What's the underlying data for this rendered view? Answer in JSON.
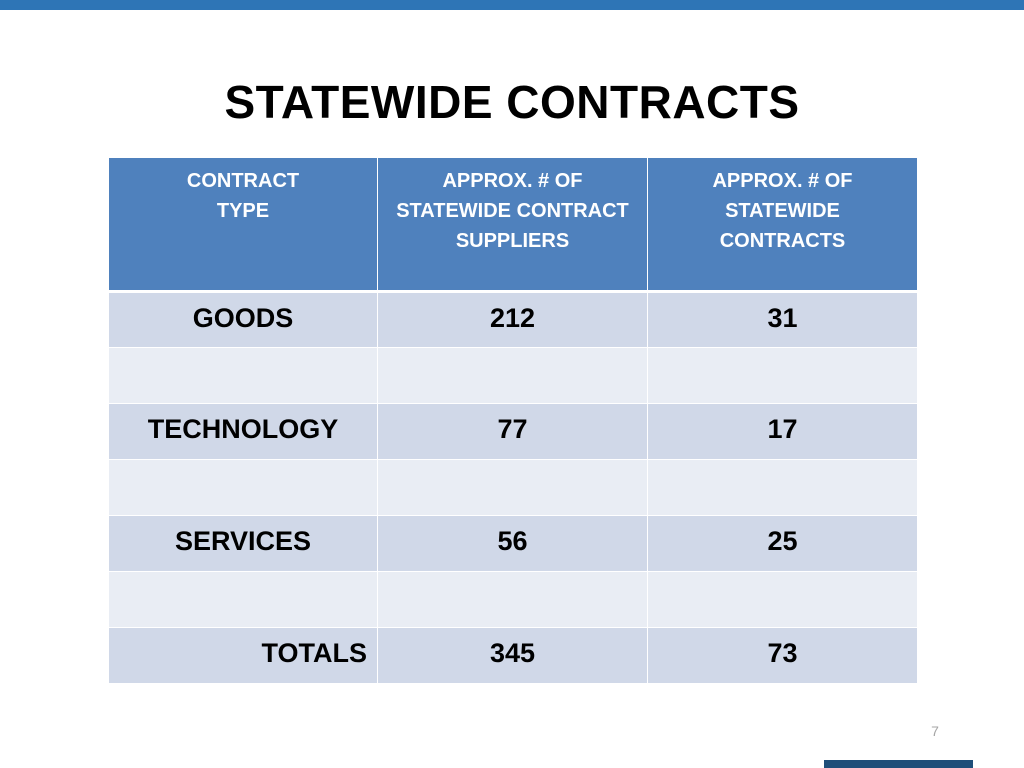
{
  "title": "STATEWIDE CONTRACTS",
  "table": {
    "headers": [
      "CONTRACT\nTYPE",
      "APPROX. # OF\nSTATEWIDE CONTRACT\nSUPPLIERS",
      "APPROX. # OF\nSTATEWIDE\nCONTRACTS"
    ],
    "rows": [
      [
        "GOODS",
        "212",
        "31"
      ],
      [
        "",
        "",
        ""
      ],
      [
        "TECHNOLOGY",
        "77",
        "17"
      ],
      [
        "",
        "",
        ""
      ],
      [
        "SERVICES",
        "56",
        "25"
      ],
      [
        "",
        "",
        ""
      ],
      [
        "TOTALS",
        "345",
        "73"
      ]
    ]
  },
  "page_number": "7",
  "colors": {
    "top_bar": "#2e75b6",
    "header_fill": "#4f81bd",
    "row_dark": "#d0d8e8",
    "row_light": "#e9edf4",
    "bottom_accent": "#1f4e79"
  }
}
